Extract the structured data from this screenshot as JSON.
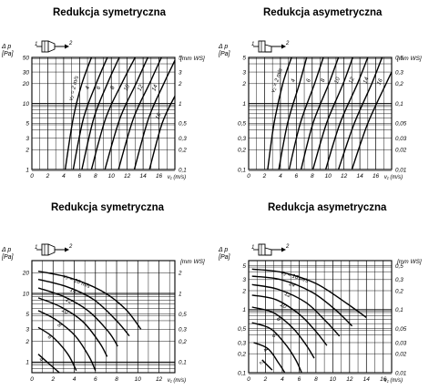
{
  "panels": [
    {
      "id": "tl",
      "title": "Redukcja symetryczna",
      "diagram": "symmetric"
    },
    {
      "id": "tr",
      "title": "Redukcja asymetryczna",
      "diagram": "asymmetric"
    },
    {
      "id": "bl",
      "title": "Redukcja symetryczna",
      "diagram": "symmetric"
    },
    {
      "id": "br",
      "title": "Redukcja asymetryczna",
      "diagram": "asymmetric"
    }
  ],
  "chart_data": [
    {
      "type": "line",
      "title": "Redukcja symetryczna",
      "ylabel_left": [
        "Δ p",
        "[Pa]"
      ],
      "ylabel_right": "[mm WS]",
      "xlabel": "v₁ (m/s)",
      "x_ticks": [
        "0",
        "2",
        "4",
        "6",
        "8",
        "10",
        "12",
        "14",
        "16"
      ],
      "xlim": [
        0,
        18
      ],
      "y_scale": "log",
      "ylim": [
        1,
        50
      ],
      "y_ticks_left": [
        "50",
        "30",
        "20",
        "10",
        "5",
        "3",
        "2",
        "1"
      ],
      "y_ticks_right": [
        "5",
        "3",
        "2",
        "1",
        "0,5",
        "0,3",
        "0,2",
        "0,1"
      ],
      "series": [
        {
          "label": "v₂ = 2 m/s",
          "points": [
            [
              4.2,
              1
            ],
            [
              5.2,
              6
            ],
            [
              6.3,
              20
            ],
            [
              7.5,
              50
            ]
          ]
        },
        {
          "label": "4",
          "points": [
            [
              5.2,
              1
            ],
            [
              6.5,
              6
            ],
            [
              8.1,
              20
            ],
            [
              9.5,
              50
            ]
          ]
        },
        {
          "label": "6",
          "points": [
            [
              6.3,
              1
            ],
            [
              7.8,
              6
            ],
            [
              9.5,
              20
            ],
            [
              11,
              50
            ]
          ]
        },
        {
          "label": "8",
          "points": [
            [
              7.5,
              1
            ],
            [
              9.3,
              6
            ],
            [
              11.3,
              20
            ],
            [
              13,
              50
            ]
          ]
        },
        {
          "label": "10",
          "points": [
            [
              9.2,
              1
            ],
            [
              11.1,
              6
            ],
            [
              13.1,
              20
            ],
            [
              14.6,
              50
            ]
          ]
        },
        {
          "label": "12",
          "points": [
            [
              10.9,
              1
            ],
            [
              12.8,
              6
            ],
            [
              14.8,
              20
            ],
            [
              16.3,
              50
            ]
          ]
        },
        {
          "label": "14",
          "points": [
            [
              12.9,
              1
            ],
            [
              14.7,
              6
            ],
            [
              16.6,
              20
            ],
            [
              18,
              45
            ]
          ]
        },
        {
          "label": "16",
          "points": [
            [
              14.8,
              1
            ],
            [
              16.4,
              5
            ],
            [
              18,
              13
            ]
          ]
        }
      ]
    },
    {
      "type": "line",
      "title": "Redukcja asymetryczna",
      "ylabel_left": [
        "Δ p",
        "[Pa]"
      ],
      "ylabel_right": "[mm WS]",
      "xlabel": "v₁ (m/s)",
      "x_ticks": [
        "0",
        "2",
        "4",
        "6",
        "8",
        "10",
        "12",
        "14",
        "16"
      ],
      "xlim": [
        0,
        18
      ],
      "y_scale": "log",
      "ylim": [
        0.1,
        5
      ],
      "y_ticks_left": [
        "5",
        "3",
        "2",
        "1",
        "0,5",
        "0,3",
        "0,2",
        "0,1"
      ],
      "y_ticks_right": [
        "0,5",
        "0,3",
        "0,2",
        "0,1",
        "0,05",
        "0,03",
        "0,02",
        "0,01"
      ],
      "series": [
        {
          "label": "v₂ = 2 m/s",
          "points": [
            [
              2.4,
              0.1
            ],
            [
              3.2,
              0.5
            ],
            [
              4.3,
              2
            ],
            [
              5.4,
              5
            ]
          ]
        },
        {
          "label": "4",
          "points": [
            [
              3.8,
              0.1
            ],
            [
              4.9,
              0.5
            ],
            [
              6.4,
              2
            ],
            [
              7.3,
              5
            ]
          ]
        },
        {
          "label": "6",
          "points": [
            [
              5.1,
              0.1
            ],
            [
              6.5,
              0.5
            ],
            [
              8.3,
              2
            ],
            [
              9.4,
              5
            ]
          ]
        },
        {
          "label": "8",
          "points": [
            [
              6.6,
              0.1
            ],
            [
              8.1,
              0.5
            ],
            [
              10.1,
              2
            ],
            [
              11.3,
              5
            ]
          ]
        },
        {
          "label": "10",
          "points": [
            [
              8.1,
              0.1
            ],
            [
              9.8,
              0.5
            ],
            [
              11.9,
              2
            ],
            [
              13.1,
              5
            ]
          ]
        },
        {
          "label": "12",
          "points": [
            [
              9.7,
              0.1
            ],
            [
              11.5,
              0.5
            ],
            [
              13.7,
              2
            ],
            [
              15,
              5
            ]
          ]
        },
        {
          "label": "14",
          "points": [
            [
              11.3,
              0.1
            ],
            [
              13.3,
              0.5
            ],
            [
              15.5,
              2
            ],
            [
              16.8,
              5
            ]
          ]
        },
        {
          "label": "16",
          "points": [
            [
              13,
              0.1
            ],
            [
              15,
              0.5
            ],
            [
              17.3,
              2
            ],
            [
              18,
              3
            ]
          ]
        }
      ]
    },
    {
      "type": "line",
      "title": "Redukcja symetryczna",
      "ylabel_left": [
        "Δ p",
        "[Pa]"
      ],
      "ylabel_right": "[mm WS]",
      "xlabel": "v₁ (m/s)",
      "x_ticks": [
        "0",
        "2",
        "4",
        "6",
        "8",
        "10",
        "12"
      ],
      "xlim": [
        0,
        13.5
      ],
      "y_scale": "log",
      "ylim": [
        0.7,
        30
      ],
      "y_ticks_left": [
        "20",
        "10",
        "5",
        "3",
        "2",
        "1"
      ],
      "y_ticks_right": [
        "2",
        "1",
        "0,5",
        "0,3",
        "0,2",
        "0,1"
      ],
      "series": [
        {
          "label": "v₂ = 16 m/s",
          "points": [
            [
              0.6,
              21
            ],
            [
              3.5,
              17
            ],
            [
              6.5,
              11
            ],
            [
              8.8,
              6
            ],
            [
              10.3,
              3
            ]
          ]
        },
        {
          "label": "14",
          "points": [
            [
              0.6,
              16
            ],
            [
              3.3,
              12.5
            ],
            [
              5.9,
              8
            ],
            [
              8,
              4
            ],
            [
              9.2,
              2.4
            ]
          ]
        },
        {
          "label": "12",
          "points": [
            [
              0.6,
              12
            ],
            [
              3,
              9
            ],
            [
              5.3,
              5.6
            ],
            [
              7.2,
              2.8
            ],
            [
              8.1,
              1.7
            ]
          ]
        },
        {
          "label": "10",
          "points": [
            [
              0.6,
              8.6
            ],
            [
              2.7,
              6.4
            ],
            [
              4.8,
              3.9
            ],
            [
              6.4,
              1.9
            ],
            [
              7.1,
              1.2
            ]
          ]
        },
        {
          "label": "8",
          "points": [
            [
              0.6,
              5.6
            ],
            [
              2.3,
              4.1
            ],
            [
              4.1,
              2.4
            ],
            [
              5.4,
              1.2
            ],
            [
              6,
              0.75
            ]
          ]
        },
        {
          "label": "6",
          "points": [
            [
              0.6,
              3.2
            ],
            [
              2,
              2.3
            ],
            [
              3.4,
              1.3
            ],
            [
              4.2,
              0.75
            ]
          ]
        },
        {
          "label": "4",
          "points": [
            [
              0.6,
              1.3
            ],
            [
              1.6,
              0.95
            ],
            [
              2.6,
              0.7
            ]
          ]
        }
      ]
    },
    {
      "type": "line",
      "title": "Redukcja asymetryczna",
      "ylabel_left": [
        "Δ p",
        "[Pa]"
      ],
      "ylabel_right": "[mm WS]",
      "xlabel": "v₁ (m/s)",
      "x_ticks": [
        "0",
        "2",
        "4",
        "6",
        "8",
        "10",
        "12",
        "14",
        "16"
      ],
      "xlim": [
        0,
        17
      ],
      "y_scale": "log",
      "ylim": [
        0.1,
        6
      ],
      "y_ticks_left": [
        "5",
        "3",
        "2",
        "1",
        "0,5",
        "0,3",
        "0,2",
        "0,1"
      ],
      "y_ticks_right": [
        "0,5",
        "0,3",
        "0,2",
        "0,1",
        "0,05",
        "0,03",
        "0,02",
        "0,01"
      ],
      "series": [
        {
          "label": "v₂ = 16 m/s",
          "points": [
            [
              0.4,
              4.4
            ],
            [
              4,
              3.9
            ],
            [
              8,
              2.6
            ],
            [
              11.5,
              1.3
            ],
            [
              14,
              0.75
            ]
          ]
        },
        {
          "label": "14",
          "points": [
            [
              0.4,
              3.4
            ],
            [
              3.8,
              3
            ],
            [
              7.5,
              1.9
            ],
            [
              10.3,
              1
            ],
            [
              12.3,
              0.55
            ]
          ]
        },
        {
          "label": "12",
          "points": [
            [
              0.4,
              2.5
            ],
            [
              3.5,
              2.1
            ],
            [
              6.8,
              1.3
            ],
            [
              9.2,
              0.65
            ],
            [
              10.8,
              0.38
            ]
          ]
        },
        {
          "label": "10",
          "points": [
            [
              0.4,
              1.7
            ],
            [
              3.2,
              1.45
            ],
            [
              6,
              0.85
            ],
            [
              8,
              0.45
            ],
            [
              9.3,
              0.27
            ]
          ]
        },
        {
          "label": "8",
          "points": [
            [
              0.4,
              1.1
            ],
            [
              2.9,
              0.9
            ],
            [
              5.2,
              0.52
            ],
            [
              6.8,
              0.28
            ],
            [
              7.8,
              0.17
            ]
          ]
        },
        {
          "label": "6",
          "points": [
            [
              0.4,
              0.62
            ],
            [
              2.6,
              0.5
            ],
            [
              4.4,
              0.28
            ],
            [
              5.6,
              0.16
            ],
            [
              6.3,
              0.1
            ]
          ]
        },
        {
          "label": "4",
          "points": [
            [
              0.6,
              0.3
            ],
            [
              2.3,
              0.24
            ],
            [
              3.6,
              0.14
            ],
            [
              4.3,
              0.1
            ]
          ]
        },
        {
          "label": "2",
          "points": [
            [
              1.6,
              0.16
            ],
            [
              2.8,
              0.11
            ]
          ]
        }
      ]
    }
  ]
}
